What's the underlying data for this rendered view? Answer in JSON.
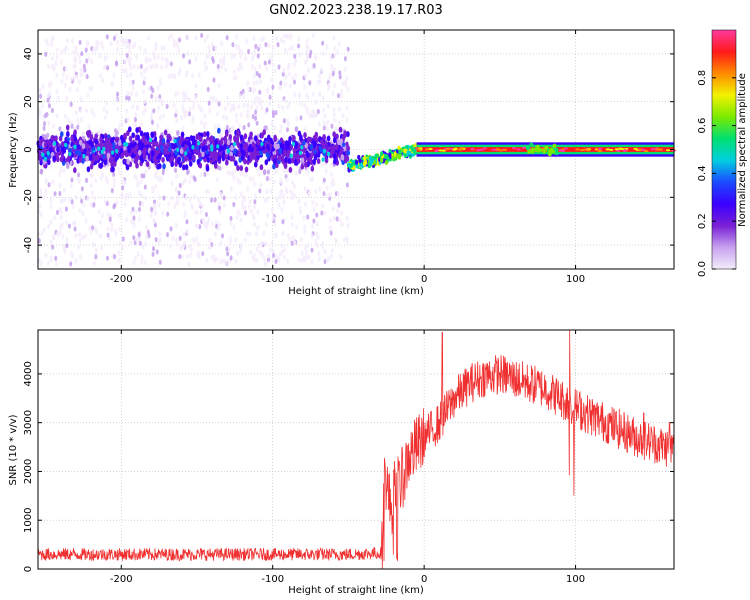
{
  "title": "GN02.2023.238.19.17.R03",
  "chart_data": [
    {
      "type": "heatmap",
      "xlabel": "Height of straight line (km)",
      "ylabel": "Frequency (Hz)",
      "xlim": [
        -255,
        165
      ],
      "ylim": [
        -50,
        50
      ],
      "xticks": [
        -200,
        -100,
        0,
        100
      ],
      "yticks": [
        -40,
        -20,
        0,
        20,
        40
      ],
      "grid": true,
      "colorbar": {
        "label": "Normalized spectral amplitude",
        "range": [
          0.0,
          1.0
        ],
        "ticks": [
          "0.0",
          "0.2",
          "0.4",
          "0.6",
          "0.8"
        ],
        "colors": [
          "#f4ecfb",
          "#c7a2ef",
          "#7a1fd6",
          "#3a00ff",
          "#1a4bff",
          "#00cfe0",
          "#00e070",
          "#7bea00",
          "#f2f200",
          "#ff8a00",
          "#ff1a1a",
          "#ff3aa0"
        ]
      },
      "segments": [
        {
          "x": [
            -255,
            -50
          ],
          "center_hz": 0,
          "description_level": "broad noise band ±10 Hz, sparse speckle to ±50 Hz"
        },
        {
          "x": [
            -50,
            -5
          ],
          "center_hz_start": -7,
          "center_hz_end": 0,
          "level": "low-mid"
        },
        {
          "x": [
            -5,
            165
          ],
          "center_hz": 0,
          "level": "high, narrow ±2 Hz"
        }
      ]
    },
    {
      "type": "line",
      "xlabel": "Height of straight line (km)",
      "ylabel": "SNR (10 * v/v)",
      "xlim": [
        -255,
        165
      ],
      "ylim": [
        0,
        4900
      ],
      "xticks": [
        -200,
        -100,
        0,
        100
      ],
      "yticks": [
        0,
        1000,
        2000,
        3000,
        4000
      ],
      "grid": true,
      "color": "#f03030",
      "envelope": {
        "x": [
          -255,
          -200,
          -100,
          -50,
          -28,
          -26,
          -22,
          -20,
          -15,
          -10,
          0,
          10,
          20,
          30,
          40,
          50,
          60,
          70,
          80,
          90,
          100,
          110,
          120,
          130,
          140,
          150,
          160,
          165
        ],
        "y": [
          300,
          300,
          300,
          300,
          330,
          2000,
          1200,
          1600,
          1800,
          2300,
          2700,
          3000,
          3500,
          3800,
          3950,
          4000,
          3900,
          3800,
          3700,
          3500,
          3300,
          3150,
          3000,
          2850,
          2700,
          2600,
          2500,
          2450
        ]
      },
      "peaks": [
        {
          "x": 12,
          "y": 4850
        },
        {
          "x": 96,
          "y": 4900
        },
        {
          "x": 145,
          "y": 3200
        },
        {
          "x": 162,
          "y": 3000
        }
      ]
    }
  ]
}
